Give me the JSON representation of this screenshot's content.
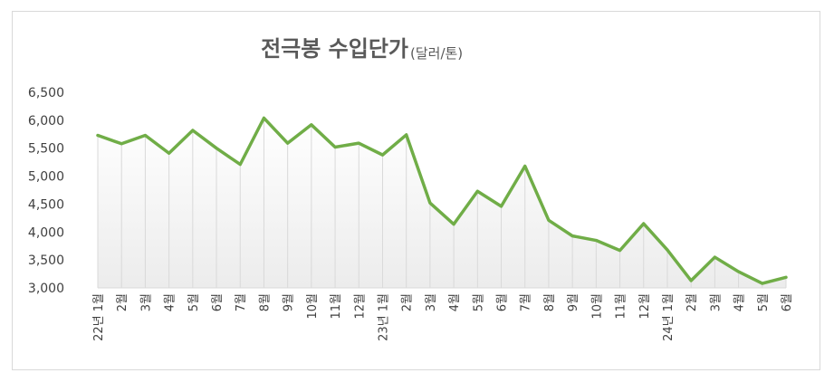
{
  "chart_data": {
    "type": "area",
    "title": "전극봉 수입단가",
    "title_unit": "(달러/톤)",
    "categories": [
      "22년 1월",
      "2월",
      "3월",
      "4월",
      "5월",
      "6월",
      "7월",
      "8월",
      "9월",
      "10월",
      "11월",
      "12월",
      "23년 1월",
      "2월",
      "3월",
      "4월",
      "5월",
      "6월",
      "7월",
      "8월",
      "9월",
      "10월",
      "11월",
      "12월",
      "24년 1월",
      "2월",
      "3월",
      "4월",
      "5월",
      "6월"
    ],
    "series": [
      {
        "values": [
          5730,
          5580,
          5730,
          5410,
          5820,
          5500,
          5210,
          6040,
          5590,
          5920,
          5520,
          5590,
          5380,
          5740,
          4520,
          4140,
          4730,
          4460,
          5180,
          4210,
          3930,
          3850,
          3670,
          4150,
          3680,
          3130,
          3550,
          3290,
          3080,
          3190
        ]
      }
    ],
    "yticks": [
      "3,000",
      "3,500",
      "4,000",
      "4,500",
      "5,000",
      "5,500",
      "6,000",
      "6,500"
    ],
    "ylim": [
      3000,
      6500
    ],
    "line_color": "#70ad47",
    "drop_line_color": "#d9d9d9",
    "xlabel": "",
    "ylabel": ""
  }
}
